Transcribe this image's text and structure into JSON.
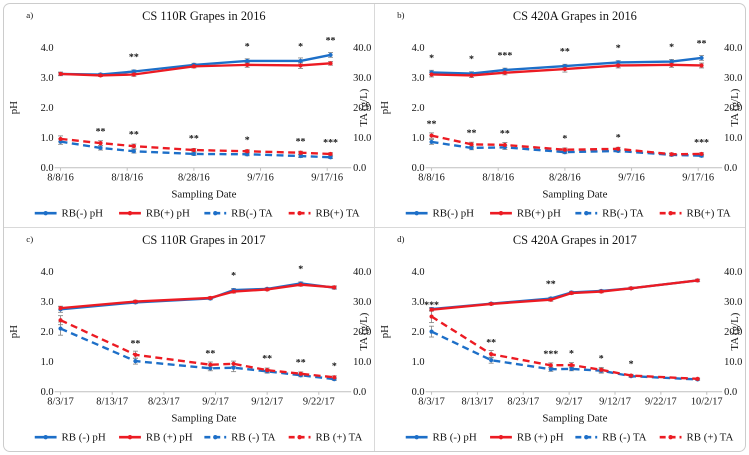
{
  "colors": {
    "rb_minus": "#1D6FC8",
    "rb_plus": "#EC1B23",
    "error_bar": "#8a8a8a",
    "axis": "#bfbfbf",
    "text": "#141414",
    "sig": "#3d3d3d"
  },
  "chart_data": [
    {
      "type": "line",
      "panel_label": "a)",
      "title": "CS 110R Grapes in 2016",
      "xlabel": "Sampling Date",
      "ylabel_left": "pH",
      "ylabel_right": "TA (g/L)",
      "ylim_left": [
        0,
        4
      ],
      "ylim_right": [
        0,
        40
      ],
      "y_left_ticks": [
        "0.0",
        "1.0",
        "2.0",
        "3.0",
        "4.0"
      ],
      "y_right_ticks": [
        "0.0",
        "10.0",
        "20.0",
        "30.0",
        "40.0"
      ],
      "x_ticks": [
        {
          "day": 0,
          "label": "8/8/16"
        },
        {
          "day": 10,
          "label": "8/18/16"
        },
        {
          "day": 20,
          "label": "8/28/16"
        },
        {
          "day": 30,
          "label": "9/7/16"
        },
        {
          "day": 40,
          "label": "9/17/16"
        }
      ],
      "x_days": [
        0,
        6,
        11,
        20,
        28,
        36,
        40.5
      ],
      "series": [
        {
          "name": "RB(-) pH",
          "axis": "left",
          "line": "solid",
          "color": "rb_minus",
          "values": [
            3.12,
            3.1,
            3.2,
            3.42,
            3.55,
            3.55,
            3.75
          ],
          "err": [
            0.06,
            0.04,
            0.05,
            0.05,
            0.07,
            0.1,
            0.08
          ]
        },
        {
          "name": "RB(+) pH",
          "axis": "left",
          "line": "solid",
          "color": "rb_plus",
          "values": [
            3.12,
            3.07,
            3.1,
            3.37,
            3.42,
            3.4,
            3.47
          ],
          "err": [
            0.05,
            0.04,
            0.06,
            0.05,
            0.08,
            0.1,
            0.06
          ]
        },
        {
          "name": "RB(-) TA",
          "axis": "right",
          "line": "dashed",
          "color": "rb_minus",
          "values": [
            8.7,
            6.6,
            5.5,
            4.6,
            4.5,
            3.9,
            3.5
          ],
          "err": [
            0.9,
            0.7,
            0.6,
            0.5,
            0.5,
            0.5,
            0.4
          ]
        },
        {
          "name": "RB(+) TA",
          "axis": "right",
          "line": "dashed",
          "color": "rb_plus",
          "values": [
            9.6,
            8.2,
            7.2,
            5.9,
            5.5,
            5.0,
            4.6
          ],
          "err": [
            1.0,
            0.8,
            0.7,
            0.5,
            0.5,
            0.5,
            0.4
          ]
        }
      ],
      "significance": {
        "ph": [
          "",
          "",
          "**",
          "",
          "*",
          "*",
          "**"
        ],
        "ta": [
          "",
          "**",
          "**",
          "**",
          "*",
          "**",
          "***"
        ]
      }
    },
    {
      "type": "line",
      "panel_label": "b)",
      "title": "CS 420A Grapes in 2016",
      "xlabel": "Sampling Date",
      "ylabel_left": "pH",
      "ylabel_right": "TA (g/L)",
      "ylim_left": [
        0,
        4
      ],
      "ylim_right": [
        0,
        40
      ],
      "y_left_ticks": [
        "0.0",
        "1.0",
        "2.0",
        "3.0",
        "4.0"
      ],
      "y_right_ticks": [
        "0.0",
        "10.0",
        "20.0",
        "30.0",
        "40.0"
      ],
      "x_ticks": [
        {
          "day": 0,
          "label": "8/8/16"
        },
        {
          "day": 10,
          "label": "8/18/16"
        },
        {
          "day": 20,
          "label": "8/28/16"
        },
        {
          "day": 30,
          "label": "9/7/16"
        },
        {
          "day": 40,
          "label": "9/17/16"
        }
      ],
      "x_days": [
        0,
        6,
        11,
        20,
        28,
        36,
        40.5
      ],
      "series": [
        {
          "name": "RB(-) pH",
          "axis": "left",
          "line": "solid",
          "color": "rb_minus",
          "values": [
            3.17,
            3.13,
            3.25,
            3.38,
            3.5,
            3.53,
            3.65
          ],
          "err": [
            0.07,
            0.06,
            0.06,
            0.06,
            0.06,
            0.07,
            0.08
          ]
        },
        {
          "name": "RB(+) pH",
          "axis": "left",
          "line": "solid",
          "color": "rb_plus",
          "values": [
            3.1,
            3.07,
            3.16,
            3.28,
            3.4,
            3.42,
            3.4
          ],
          "err": [
            0.08,
            0.07,
            0.07,
            0.1,
            0.08,
            0.08,
            0.08
          ]
        },
        {
          "name": "RB(-) TA",
          "axis": "right",
          "line": "dashed",
          "color": "rb_minus",
          "values": [
            8.6,
            6.6,
            6.8,
            5.2,
            5.6,
            4.3,
            4.0
          ],
          "err": [
            0.8,
            0.6,
            0.7,
            0.5,
            0.4,
            0.4,
            0.4
          ]
        },
        {
          "name": "RB(+) TA",
          "axis": "right",
          "line": "dashed",
          "color": "rb_plus",
          "values": [
            10.7,
            7.8,
            7.6,
            6.0,
            6.3,
            4.5,
            4.6
          ],
          "err": [
            0.9,
            0.7,
            0.8,
            0.6,
            0.5,
            0.4,
            0.4
          ]
        }
      ],
      "significance": {
        "ph": [
          "*",
          "*",
          "***",
          "**",
          "*",
          "*",
          "**"
        ],
        "ta": [
          "**",
          "**",
          "**",
          "*",
          "*",
          "",
          "***"
        ]
      }
    },
    {
      "type": "line",
      "panel_label": "c)",
      "title": "CS 110R Grapes in 2017",
      "xlabel": "Sampling Date",
      "ylabel_left": "pH",
      "ylabel_right": "TA (g/L)",
      "ylim_left": [
        0,
        4
      ],
      "ylim_right": [
        0,
        40
      ],
      "y_left_ticks": [
        "0.0",
        "1.0",
        "2.0",
        "3.0",
        "4.0"
      ],
      "y_right_ticks": [
        "0.0",
        "10.0",
        "20.0",
        "30.0",
        "40.0"
      ],
      "x_ticks": [
        {
          "day": 0,
          "label": "8/3/17"
        },
        {
          "day": 10,
          "label": "8/13/17"
        },
        {
          "day": 20,
          "label": "8/23/17"
        },
        {
          "day": 30,
          "label": "9/2/17"
        },
        {
          "day": 40,
          "label": "9/12/17"
        },
        {
          "day": 50,
          "label": "9/22/17"
        }
      ],
      "x_days": [
        0,
        14.5,
        29,
        33.5,
        40,
        46.5,
        53
      ],
      "series": [
        {
          "name": "RB (-) pH",
          "axis": "left",
          "line": "solid",
          "color": "rb_minus",
          "values": [
            2.74,
            2.97,
            3.1,
            3.38,
            3.42,
            3.6,
            3.46
          ],
          "err": [
            0.1,
            0.04,
            0.04,
            0.05,
            0.04,
            0.05,
            0.05
          ]
        },
        {
          "name": "RB (+) pH",
          "axis": "left",
          "line": "solid",
          "color": "rb_plus",
          "values": [
            2.78,
            3.0,
            3.12,
            3.33,
            3.4,
            3.56,
            3.47
          ],
          "err": [
            0.06,
            0.04,
            0.04,
            0.05,
            0.04,
            0.05,
            0.05
          ]
        },
        {
          "name": "RB (-) TA",
          "axis": "right",
          "line": "dashed",
          "color": "rb_minus",
          "values": [
            21.0,
            10.2,
            7.8,
            8.0,
            6.8,
            5.5,
            4.2
          ],
          "err": [
            2.2,
            1.0,
            0.8,
            1.3,
            0.6,
            0.5,
            0.4
          ]
        },
        {
          "name": "RB (+) TA",
          "axis": "right",
          "line": "dashed",
          "color": "rb_plus",
          "values": [
            23.8,
            12.3,
            9.0,
            9.3,
            7.2,
            6.0,
            4.8
          ],
          "err": [
            1.5,
            1.2,
            0.9,
            0.9,
            0.7,
            0.6,
            0.5
          ]
        }
      ],
      "significance": {
        "ph": [
          "",
          "",
          "",
          "*",
          "",
          "*",
          ""
        ],
        "ta": [
          "",
          "**",
          "**",
          "",
          "**",
          "**",
          "*"
        ]
      }
    },
    {
      "type": "line",
      "panel_label": "d)",
      "title": "CS 420A Grapes in 2017",
      "xlabel": "Sampling Date",
      "ylabel_left": "pH",
      "ylabel_right": "TA (g/L)",
      "ylim_left": [
        0,
        4
      ],
      "ylim_right": [
        0,
        40
      ],
      "y_left_ticks": [
        "0.0",
        "1.0",
        "2.0",
        "3.0",
        "4.0"
      ],
      "y_right_ticks": [
        "0.0",
        "10.0",
        "20.0",
        "30.0",
        "40.0"
      ],
      "x_ticks": [
        {
          "day": 0,
          "label": "8/3/17"
        },
        {
          "day": 10,
          "label": "8/13/17"
        },
        {
          "day": 20,
          "label": "8/23/17"
        },
        {
          "day": 30,
          "label": "9/2/17"
        },
        {
          "day": 40,
          "label": "9/12/17"
        },
        {
          "day": 50,
          "label": "9/22/17"
        },
        {
          "day": 60,
          "label": "10/2/17"
        }
      ],
      "x_days": [
        0,
        13,
        26,
        30.5,
        37,
        43.5,
        58
      ],
      "series": [
        {
          "name": "RB (-) pH",
          "axis": "left",
          "line": "solid",
          "color": "rb_minus",
          "values": [
            2.75,
            2.93,
            3.1,
            3.3,
            3.35,
            3.44,
            3.7
          ],
          "err": [
            0.05,
            0.04,
            0.04,
            0.04,
            0.04,
            0.04,
            0.04
          ]
        },
        {
          "name": "RB (+) pH",
          "axis": "left",
          "line": "solid",
          "color": "rb_plus",
          "values": [
            2.73,
            2.92,
            3.06,
            3.28,
            3.33,
            3.44,
            3.7
          ],
          "err": [
            0.05,
            0.04,
            0.05,
            0.04,
            0.04,
            0.04,
            0.04
          ]
        },
        {
          "name": "RB (-) TA",
          "axis": "right",
          "line": "dashed",
          "color": "rb_minus",
          "values": [
            20.0,
            10.5,
            7.5,
            7.6,
            7.0,
            5.2,
            4.1
          ],
          "err": [
            1.8,
            1.0,
            0.7,
            0.6,
            0.8,
            0.4,
            0.3
          ]
        },
        {
          "name": "RB (+) TA",
          "axis": "right",
          "line": "dashed",
          "color": "rb_plus",
          "values": [
            25.0,
            12.5,
            8.8,
            8.9,
            7.3,
            5.4,
            4.3
          ],
          "err": [
            2.0,
            1.2,
            0.8,
            0.8,
            0.8,
            0.4,
            0.3
          ]
        }
      ],
      "significance": {
        "ph": [
          "",
          "",
          "**",
          "",
          "",
          "",
          ""
        ],
        "ta": [
          "***",
          "**",
          "***",
          "*",
          "*",
          "*",
          ""
        ]
      }
    }
  ]
}
